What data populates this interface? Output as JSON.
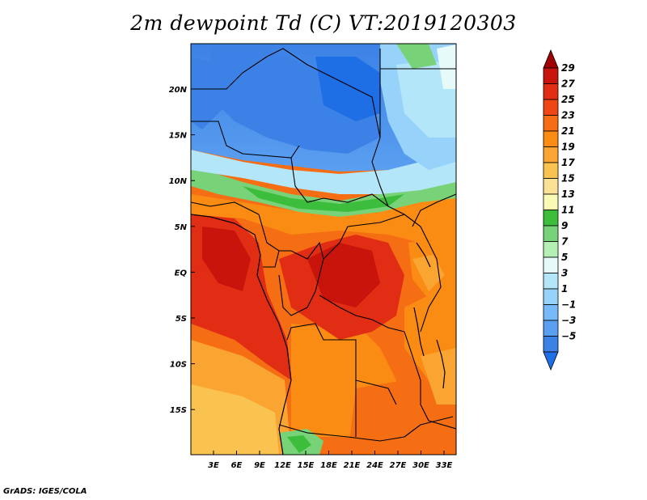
{
  "title": "2m dewpoint Td (C) VT:2019120303",
  "credit": "GrADS: IGES/COLA",
  "map": {
    "lat_ticks": [
      "20N",
      "15N",
      "10N",
      "5N",
      "EQ",
      "5S",
      "10S",
      "15S"
    ],
    "lon_ticks": [
      "3E",
      "6E",
      "9E",
      "12E",
      "15E",
      "18E",
      "21E",
      "24E",
      "27E",
      "30E",
      "33E"
    ]
  },
  "colorbar": {
    "labels": [
      "29",
      "27",
      "25",
      "23",
      "21",
      "19",
      "17",
      "15",
      "13",
      "11",
      "9",
      "7",
      "5",
      "3",
      "1",
      "−1",
      "−3",
      "−5"
    ],
    "colors": [
      "#a00000",
      "#c8140a",
      "#e12d14",
      "#f04614",
      "#f56e14",
      "#fa8c14",
      "#faa532",
      "#fac350",
      "#fae196",
      "#fafab4",
      "#3cbe3c",
      "#78d278",
      "#b4f0b4",
      "#e6fafa",
      "#b4e6fa",
      "#96d2fa",
      "#78b9fa",
      "#5a9ff0",
      "#3c82e6",
      "#1e6ee6"
    ]
  }
}
